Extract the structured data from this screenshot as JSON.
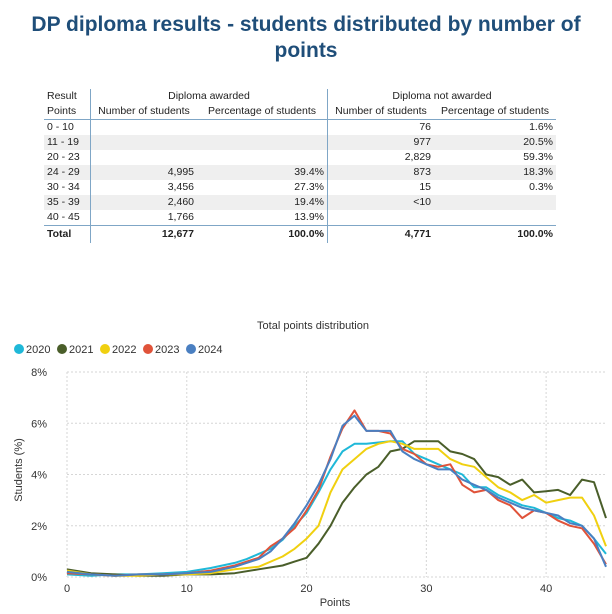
{
  "page_title": "DP diploma results - students distributed by number of points",
  "table": {
    "group_header_left": "Result",
    "group_header_awarded": "Diploma awarded",
    "group_header_not_awarded": "Diploma not awarded",
    "col_points": "Points",
    "col_num_awarded": "Number of students",
    "col_pct_awarded": "Percentage of students",
    "col_num_not": "Number of students",
    "col_pct_not": "Percentage of students",
    "rows": [
      {
        "points": "0 - 10",
        "aw_n": "",
        "aw_p": "",
        "na_n": "76",
        "na_p": "1.6%"
      },
      {
        "points": "11 - 19",
        "aw_n": "",
        "aw_p": "",
        "na_n": "977",
        "na_p": "20.5%"
      },
      {
        "points": "20 - 23",
        "aw_n": "",
        "aw_p": "",
        "na_n": "2,829",
        "na_p": "59.3%"
      },
      {
        "points": "24 - 29",
        "aw_n": "4,995",
        "aw_p": "39.4%",
        "na_n": "873",
        "na_p": "18.3%"
      },
      {
        "points": "30 - 34",
        "aw_n": "3,456",
        "aw_p": "27.3%",
        "na_n": "15",
        "na_p": "0.3%"
      },
      {
        "points": "35 - 39",
        "aw_n": "2,460",
        "aw_p": "19.4%",
        "na_n": "<10",
        "na_p": ""
      },
      {
        "points": "40 - 45",
        "aw_n": "1,766",
        "aw_p": "13.9%",
        "na_n": "",
        "na_p": ""
      }
    ],
    "total": {
      "points": "Total",
      "aw_n": "12,677",
      "aw_p": "100.0%",
      "na_n": "4,771",
      "na_p": "100.0%"
    }
  },
  "chart_data": {
    "type": "line",
    "title": "Total points distribution",
    "xlabel": "Points",
    "ylabel": "Students (%)",
    "xlim": [
      0,
      45
    ],
    "ylim": [
      0,
      8
    ],
    "x_ticks": [
      0,
      10,
      20,
      30,
      40
    ],
    "y_ticks": [
      0,
      2,
      4,
      6,
      8
    ],
    "y_tick_labels": [
      "0%",
      "2%",
      "4%",
      "6%",
      "8%"
    ],
    "grid": true,
    "legend_position": "top-left",
    "series": [
      {
        "name": "2020",
        "color": "#1fb8d8",
        "points": [
          [
            0,
            0.1
          ],
          [
            2,
            0.05
          ],
          [
            4,
            0.1
          ],
          [
            6,
            0.1
          ],
          [
            8,
            0.15
          ],
          [
            10,
            0.2
          ],
          [
            12,
            0.35
          ],
          [
            14,
            0.55
          ],
          [
            15,
            0.7
          ],
          [
            16,
            0.9
          ],
          [
            17,
            1.1
          ],
          [
            18,
            1.45
          ],
          [
            19,
            2.0
          ],
          [
            20,
            2.5
          ],
          [
            21,
            3.3
          ],
          [
            22,
            4.2
          ],
          [
            23,
            4.9
          ],
          [
            24,
            5.2
          ],
          [
            25,
            5.2
          ],
          [
            26,
            5.25
          ],
          [
            27,
            5.3
          ],
          [
            28,
            5.3
          ],
          [
            29,
            4.8
          ],
          [
            30,
            4.6
          ],
          [
            31,
            4.4
          ],
          [
            32,
            4.2
          ],
          [
            33,
            4.0
          ],
          [
            34,
            3.5
          ],
          [
            35,
            3.5
          ],
          [
            36,
            3.2
          ],
          [
            37,
            3.0
          ],
          [
            38,
            2.8
          ],
          [
            39,
            2.7
          ],
          [
            40,
            2.5
          ],
          [
            41,
            2.3
          ],
          [
            42,
            2.2
          ],
          [
            43,
            2.0
          ],
          [
            44,
            1.5
          ],
          [
            45,
            0.9
          ]
        ]
      },
      {
        "name": "2021",
        "color": "#4a5e2a",
        "points": [
          [
            0,
            0.3
          ],
          [
            2,
            0.15
          ],
          [
            4,
            0.1
          ],
          [
            6,
            0.05
          ],
          [
            8,
            0.05
          ],
          [
            10,
            0.1
          ],
          [
            12,
            0.1
          ],
          [
            14,
            0.15
          ],
          [
            16,
            0.3
          ],
          [
            18,
            0.45
          ],
          [
            19,
            0.6
          ],
          [
            20,
            0.75
          ],
          [
            21,
            1.3
          ],
          [
            22,
            2.0
          ],
          [
            23,
            2.9
          ],
          [
            24,
            3.5
          ],
          [
            25,
            4.0
          ],
          [
            26,
            4.3
          ],
          [
            27,
            4.9
          ],
          [
            28,
            5.0
          ],
          [
            29,
            5.3
          ],
          [
            30,
            5.3
          ],
          [
            31,
            5.3
          ],
          [
            32,
            4.9
          ],
          [
            33,
            4.8
          ],
          [
            34,
            4.6
          ],
          [
            35,
            4.0
          ],
          [
            36,
            3.9
          ],
          [
            37,
            3.6
          ],
          [
            38,
            3.8
          ],
          [
            39,
            3.3
          ],
          [
            40,
            3.35
          ],
          [
            41,
            3.4
          ],
          [
            42,
            3.2
          ],
          [
            43,
            3.8
          ],
          [
            44,
            3.7
          ],
          [
            45,
            2.3
          ]
        ]
      },
      {
        "name": "2022",
        "color": "#f0d010",
        "points": [
          [
            0,
            0.25
          ],
          [
            2,
            0.1
          ],
          [
            4,
            0.05
          ],
          [
            6,
            0.05
          ],
          [
            8,
            0.1
          ],
          [
            10,
            0.1
          ],
          [
            12,
            0.15
          ],
          [
            14,
            0.3
          ],
          [
            16,
            0.4
          ],
          [
            18,
            0.8
          ],
          [
            19,
            1.1
          ],
          [
            20,
            1.5
          ],
          [
            21,
            2.0
          ],
          [
            22,
            3.3
          ],
          [
            23,
            4.2
          ],
          [
            24,
            4.6
          ],
          [
            25,
            5.0
          ],
          [
            26,
            5.2
          ],
          [
            27,
            5.3
          ],
          [
            28,
            5.2
          ],
          [
            29,
            5.0
          ],
          [
            30,
            5.0
          ],
          [
            31,
            5.0
          ],
          [
            32,
            4.6
          ],
          [
            33,
            4.4
          ],
          [
            34,
            4.3
          ],
          [
            35,
            3.9
          ],
          [
            36,
            3.5
          ],
          [
            37,
            3.3
          ],
          [
            38,
            3.0
          ],
          [
            39,
            3.2
          ],
          [
            40,
            2.9
          ],
          [
            41,
            3.0
          ],
          [
            42,
            3.1
          ],
          [
            43,
            3.1
          ],
          [
            44,
            2.4
          ],
          [
            45,
            1.2
          ]
        ]
      },
      {
        "name": "2023",
        "color": "#e0533a",
        "points": [
          [
            0,
            0.15
          ],
          [
            2,
            0.1
          ],
          [
            4,
            0.05
          ],
          [
            6,
            0.1
          ],
          [
            8,
            0.1
          ],
          [
            10,
            0.15
          ],
          [
            12,
            0.25
          ],
          [
            14,
            0.45
          ],
          [
            16,
            0.75
          ],
          [
            17,
            1.2
          ],
          [
            18,
            1.5
          ],
          [
            19,
            1.9
          ],
          [
            20,
            2.6
          ],
          [
            21,
            3.4
          ],
          [
            22,
            4.7
          ],
          [
            23,
            5.8
          ],
          [
            24,
            6.5
          ],
          [
            25,
            5.7
          ],
          [
            26,
            5.7
          ],
          [
            27,
            5.6
          ],
          [
            28,
            5.0
          ],
          [
            29,
            4.8
          ],
          [
            30,
            4.4
          ],
          [
            31,
            4.3
          ],
          [
            32,
            4.4
          ],
          [
            33,
            3.6
          ],
          [
            34,
            3.3
          ],
          [
            35,
            3.4
          ],
          [
            36,
            3.0
          ],
          [
            37,
            2.8
          ],
          [
            38,
            2.3
          ],
          [
            39,
            2.6
          ],
          [
            40,
            2.5
          ],
          [
            41,
            2.2
          ],
          [
            42,
            2.0
          ],
          [
            43,
            1.9
          ],
          [
            44,
            1.3
          ],
          [
            45,
            0.5
          ]
        ]
      },
      {
        "name": "2024",
        "color": "#4a7fc1",
        "points": [
          [
            0,
            0.2
          ],
          [
            2,
            0.1
          ],
          [
            4,
            0.05
          ],
          [
            6,
            0.1
          ],
          [
            8,
            0.1
          ],
          [
            10,
            0.15
          ],
          [
            12,
            0.2
          ],
          [
            14,
            0.4
          ],
          [
            16,
            0.7
          ],
          [
            17,
            1.0
          ],
          [
            18,
            1.5
          ],
          [
            19,
            2.1
          ],
          [
            20,
            2.8
          ],
          [
            21,
            3.6
          ],
          [
            22,
            4.6
          ],
          [
            23,
            5.9
          ],
          [
            24,
            6.3
          ],
          [
            25,
            5.7
          ],
          [
            26,
            5.7
          ],
          [
            27,
            5.7
          ],
          [
            28,
            4.9
          ],
          [
            29,
            4.6
          ],
          [
            30,
            4.4
          ],
          [
            31,
            4.2
          ],
          [
            32,
            4.2
          ],
          [
            33,
            3.8
          ],
          [
            34,
            3.6
          ],
          [
            35,
            3.4
          ],
          [
            36,
            3.1
          ],
          [
            37,
            2.9
          ],
          [
            38,
            2.7
          ],
          [
            39,
            2.6
          ],
          [
            40,
            2.5
          ],
          [
            41,
            2.4
          ],
          [
            42,
            2.1
          ],
          [
            43,
            2.0
          ],
          [
            44,
            1.5
          ],
          [
            45,
            0.4
          ]
        ]
      }
    ]
  }
}
